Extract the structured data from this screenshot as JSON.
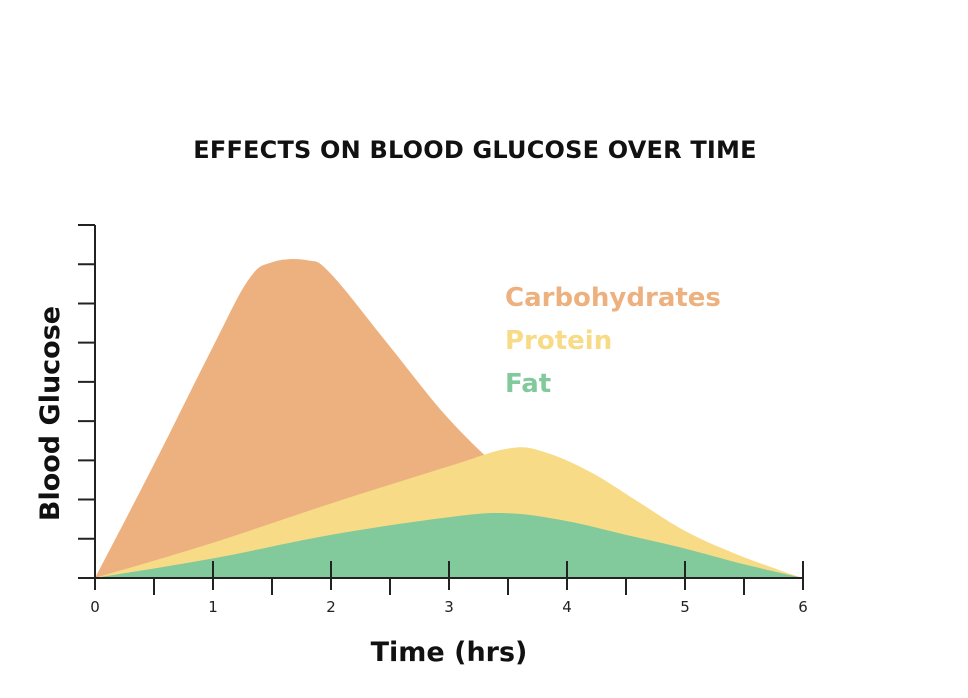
{
  "chart_data": {
    "type": "area",
    "title": "EFFECTS ON BLOOD GLUCOSE OVER TIME",
    "xlabel": "Time (hrs)",
    "ylabel": "Blood Glucose",
    "xlim": [
      0,
      6
    ],
    "ylim": [
      0,
      9
    ],
    "x_tick_labels": [
      "0",
      "1",
      "2",
      "3",
      "4",
      "5",
      "6"
    ],
    "x_tick_values": [
      0,
      1,
      2,
      3,
      4,
      5,
      6
    ],
    "x_minor_tick_values": [
      0.5,
      1.5,
      2.5,
      3.5,
      4.5,
      5.5
    ],
    "y_tick_values": [
      1,
      2,
      3,
      4,
      5,
      6,
      7,
      8,
      9
    ],
    "y_tick_labels_shown": false,
    "legend_position": "upper-right",
    "series": [
      {
        "name": "Carbohydrates",
        "color": "#EDB17F",
        "x": [
          0,
          0.5,
          1.0,
          1.3,
          1.5,
          1.8,
          2.0,
          2.5,
          3.0,
          3.5,
          3.9,
          4.2
        ],
        "values": [
          0,
          2.9,
          5.9,
          7.6,
          8.05,
          8.1,
          7.75,
          5.9,
          4.05,
          2.6,
          1.7,
          1.1
        ]
      },
      {
        "name": "Protein",
        "color": "#F7DB87",
        "x": [
          0,
          1,
          2,
          3,
          3.5,
          3.8,
          4.2,
          4.6,
          5.0,
          5.4,
          5.8,
          6.0
        ],
        "values": [
          0,
          0.9,
          1.9,
          2.85,
          3.3,
          3.22,
          2.7,
          1.95,
          1.2,
          0.65,
          0.2,
          0
        ]
      },
      {
        "name": "Fat",
        "color": "#82CA9C",
        "x": [
          0,
          1,
          2,
          3,
          3.5,
          4.0,
          4.5,
          5.0,
          5.5,
          6.0
        ],
        "values": [
          0,
          0.5,
          1.1,
          1.55,
          1.65,
          1.45,
          1.1,
          0.75,
          0.35,
          0
        ]
      }
    ]
  }
}
